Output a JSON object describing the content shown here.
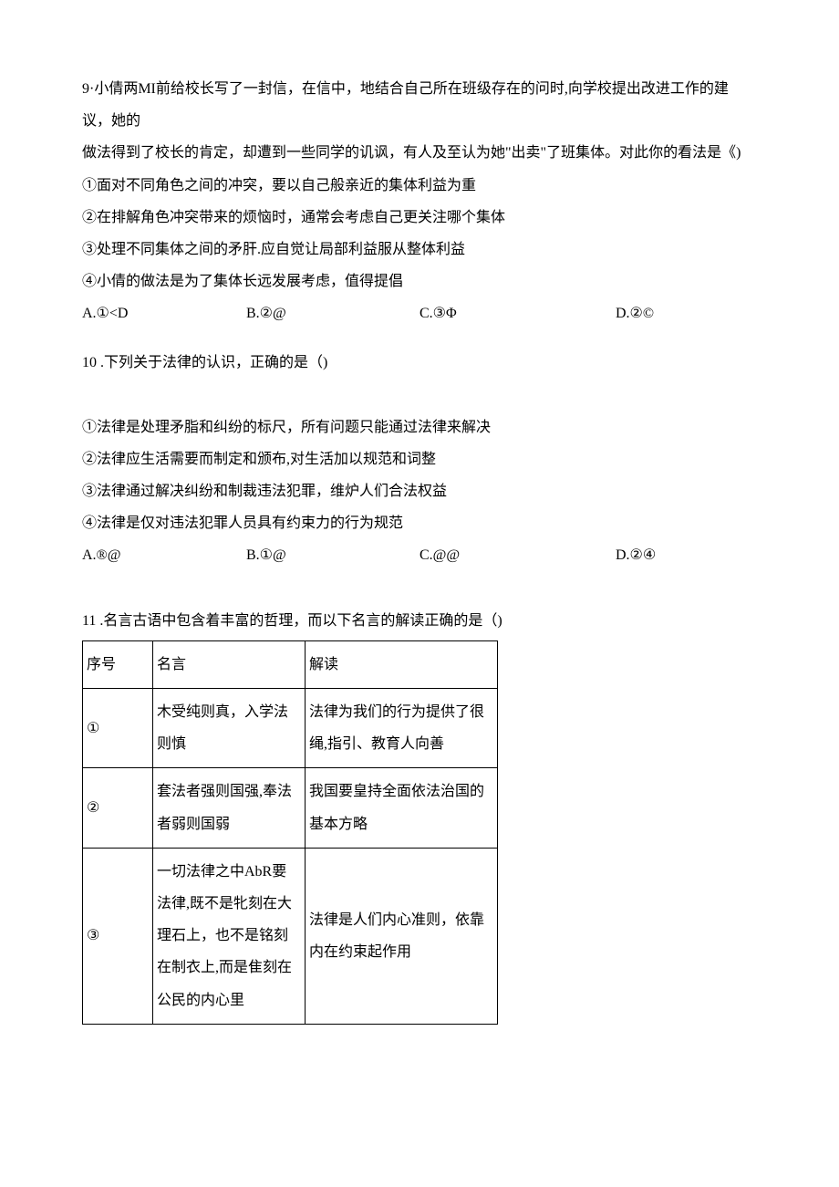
{
  "q9": {
    "stem1": "9·小倩两MI前给校长写了一封信，在信中，地结合自己所在班级存在的问时,向学校提出改进工作的建议，她的",
    "stem2": "做法得到了校长的肯定，却遭到一些同学的讥讽，有人及至认为她\"出卖\"了班集体。对此你的看法是《)",
    "s1": "①面对不同角色之间的冲突，要以自己般亲近的集体利益为重",
    "s2": "②在排解角色冲突带来的烦恼时，通常会考虑自己更关注哪个集体",
    "s3": "③处理不同集体之间的矛肝.应自觉让局部利益服从整体利益",
    "s4": "④小倩的做法是为了集体长远发展考虑，值得提倡",
    "a": "A.①<D",
    "b": "B.②@",
    "c": "C.③Φ",
    "d": "D.②©"
  },
  "q10": {
    "stem": "10 .下列关于法律的认识，正确的是（)",
    "s1": "①法律是处理矛脂和纠纷的标尺，所有问题只能通过法律来解决",
    "s2": "②法律应生活需要而制定和颁布,对生活加以规范和词整",
    "s3": "③法律通过解决纠纷和制裁违法犯罪，维炉人们合法权益",
    "s4": "④法律是仅对违法犯罪人员具有约束力的行为规范",
    "a": "A.®@",
    "b": "B.①@",
    "c": "C.@@",
    "d": "D.②④"
  },
  "q11": {
    "stem": "11 .名言古语中包含着丰富的哲理，而以下名言的解读正确的是（)",
    "header": {
      "c1": "序号",
      "c2": "名言",
      "c3": "解读"
    },
    "rows": [
      {
        "c1": "①",
        "c2": "木受纯则真，入学法则慎",
        "c3": "法律为我们的行为提供了很绳,指引、教育人向善"
      },
      {
        "c1": "②",
        "c2": "套法者强则国强,奉法者弱则国弱",
        "c3": "我国要皇持全面依法治国的基本方略"
      },
      {
        "c1": "③",
        "c2": "一切法律之中AbR要法律,既不是牝刻在大理石上，也不是铭刻在制衣上,而是隹刻在公民的内心里",
        "c3": "法律是人们内心准则，依靠内在约束起作用"
      }
    ]
  }
}
